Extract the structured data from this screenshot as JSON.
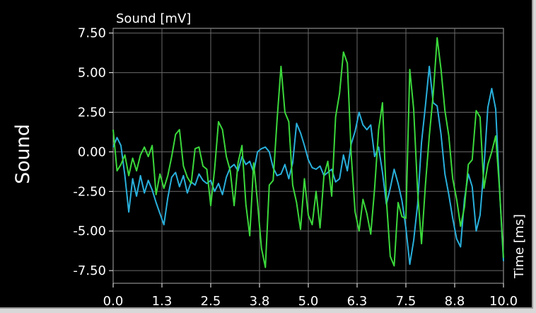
{
  "window": {
    "side_title": "Sound"
  },
  "chart_data": {
    "type": "line",
    "ylabel": "Sound [mV]",
    "xlabel": "Time [ms]",
    "xlim": [
      0,
      10
    ],
    "ylim": [
      -8.3,
      7.8
    ],
    "x_ticks": [
      0,
      1.25,
      2.5,
      3.75,
      5,
      6.25,
      7.5,
      8.75,
      10
    ],
    "x_tick_labels": [
      "0.0",
      "1.3",
      "2.5",
      "3.8",
      "5.0",
      "6.3",
      "7.5",
      "8.8",
      "10.0"
    ],
    "y_ticks": [
      7.5,
      5,
      2.5,
      0,
      -2.5,
      -5,
      -7.5
    ],
    "y_tick_labels": [
      "7.50",
      "5.00",
      "2.50",
      "0.00",
      "-2.50",
      "-5.00",
      "-7.50"
    ],
    "grid": true,
    "series": [
      {
        "color": "#29b0dc",
        "x": [
          0,
          0.1,
          0.2,
          0.3,
          0.4,
          0.5,
          0.6,
          0.7,
          0.8,
          0.9,
          1.0,
          1.1,
          1.2,
          1.3,
          1.4,
          1.5,
          1.6,
          1.7,
          1.8,
          1.9,
          2.0,
          2.1,
          2.2,
          2.3,
          2.4,
          2.5,
          2.6,
          2.7,
          2.8,
          2.9,
          3.0,
          3.1,
          3.2,
          3.3,
          3.4,
          3.5,
          3.6,
          3.7,
          3.8,
          3.9,
          4.0,
          4.1,
          4.2,
          4.3,
          4.4,
          4.5,
          4.6,
          4.7,
          4.8,
          4.9,
          5.0,
          5.1,
          5.2,
          5.3,
          5.4,
          5.5,
          5.6,
          5.7,
          5.8,
          5.9,
          6.0,
          6.1,
          6.2,
          6.3,
          6.4,
          6.5,
          6.6,
          6.7,
          6.8,
          6.9,
          7.0,
          7.1,
          7.2,
          7.3,
          7.4,
          7.5,
          7.6,
          7.7,
          7.8,
          7.9,
          8.0,
          8.1,
          8.2,
          8.3,
          8.4,
          8.5,
          8.6,
          8.7,
          8.8,
          8.9,
          9.0,
          9.1,
          9.2,
          9.3,
          9.4,
          9.5,
          9.6,
          9.7,
          9.8,
          9.9,
          10.0
        ],
        "y": [
          0.3,
          0.9,
          0.4,
          -1.5,
          -3.8,
          -1.7,
          -2.8,
          -1.5,
          -2.6,
          -1.8,
          -2.4,
          -3.2,
          -3.9,
          -4.6,
          -2.9,
          -1.6,
          -1.3,
          -2.2,
          -1.5,
          -2.6,
          -1.9,
          -2.1,
          -1.4,
          -1.8,
          -2.0,
          -1.8,
          -2.5,
          -2.0,
          -2.7,
          -1.6,
          -1.0,
          -0.8,
          -1.2,
          -0.3,
          -0.8,
          -0.6,
          -1.3,
          0.0,
          0.2,
          0.3,
          0.0,
          -1.0,
          -1.5,
          -1.4,
          -0.8,
          -1.7,
          -0.7,
          1.8,
          1.2,
          0.4,
          -0.5,
          -1.0,
          -1.1,
          -0.9,
          -1.5,
          -1.3,
          -1.1,
          -1.9,
          -1.7,
          -0.2,
          -1.2,
          0.5,
          1.3,
          2.5,
          1.7,
          1.4,
          1.7,
          -0.3,
          0.3,
          -1.3,
          -3.3,
          -2.3,
          -1.1,
          -2.0,
          -3.1,
          -4.8,
          -7.1,
          -5.6,
          -3.3,
          0.6,
          2.9,
          5.4,
          3.1,
          2.9,
          1.1,
          -1.4,
          -2.7,
          -4.2,
          -5.5,
          -6.0,
          -3.0,
          -1.4,
          -2.2,
          -5.0,
          -4.0,
          -1.0,
          2.8,
          4.0,
          2.7,
          -2.4,
          -6.9
        ]
      },
      {
        "color": "#3bd83b",
        "x": [
          0,
          0.1,
          0.2,
          0.3,
          0.4,
          0.5,
          0.6,
          0.7,
          0.8,
          0.9,
          1.0,
          1.1,
          1.2,
          1.3,
          1.4,
          1.5,
          1.6,
          1.7,
          1.8,
          1.9,
          2.0,
          2.1,
          2.2,
          2.3,
          2.4,
          2.5,
          2.6,
          2.7,
          2.8,
          2.9,
          3.0,
          3.1,
          3.2,
          3.3,
          3.4,
          3.5,
          3.6,
          3.7,
          3.8,
          3.9,
          4.0,
          4.1,
          4.2,
          4.3,
          4.4,
          4.5,
          4.6,
          4.7,
          4.8,
          4.9,
          5.0,
          5.1,
          5.2,
          5.3,
          5.4,
          5.5,
          5.6,
          5.7,
          5.8,
          5.9,
          6.0,
          6.1,
          6.2,
          6.3,
          6.4,
          6.5,
          6.6,
          6.7,
          6.8,
          6.9,
          7.0,
          7.1,
          7.2,
          7.3,
          7.4,
          7.5,
          7.6,
          7.7,
          7.8,
          7.9,
          8.0,
          8.1,
          8.2,
          8.3,
          8.4,
          8.5,
          8.6,
          8.7,
          8.8,
          8.9,
          9.0,
          9.1,
          9.2,
          9.3,
          9.4,
          9.5,
          9.6,
          9.7,
          9.8,
          9.9,
          10.0
        ],
        "y": [
          1.4,
          -1.2,
          -0.8,
          -0.2,
          -1.5,
          -0.4,
          -1.2,
          -0.2,
          0.3,
          -0.3,
          0.4,
          -2.7,
          -1.4,
          -2.3,
          -1.5,
          -0.3,
          1.1,
          1.4,
          -0.9,
          -1.6,
          -2.0,
          0.2,
          0.3,
          -0.9,
          -1.1,
          -3.4,
          -1.1,
          1.9,
          1.4,
          -0.3,
          -1.2,
          -3.4,
          -0.7,
          0.4,
          -3.3,
          -5.3,
          -0.7,
          -3.2,
          -6.1,
          -7.3,
          -2.1,
          -1.8,
          2.0,
          5.4,
          2.5,
          1.9,
          -2.1,
          -3.2,
          -4.9,
          -1.7,
          -4.0,
          -4.6,
          -2.5,
          -4.8,
          -1.5,
          -0.6,
          -2.8,
          2.2,
          3.7,
          6.3,
          5.6,
          -0.2,
          -3.8,
          -5.0,
          -3.0,
          -3.9,
          -5.2,
          -2.3,
          1.4,
          3.1,
          -3.0,
          -6.6,
          -7.2,
          -3.2,
          -4.1,
          -4.2,
          5.2,
          2.7,
          -2.5,
          -5.8,
          -2.1,
          1.0,
          3.6,
          7.2,
          5.2,
          2.6,
          1.0,
          -1.7,
          -3.0,
          -4.7,
          -3.5,
          -0.8,
          -0.5,
          2.6,
          2.2,
          -2.3,
          -0.8,
          0.0,
          1.0,
          -2.4,
          -6.7
        ]
      }
    ]
  }
}
